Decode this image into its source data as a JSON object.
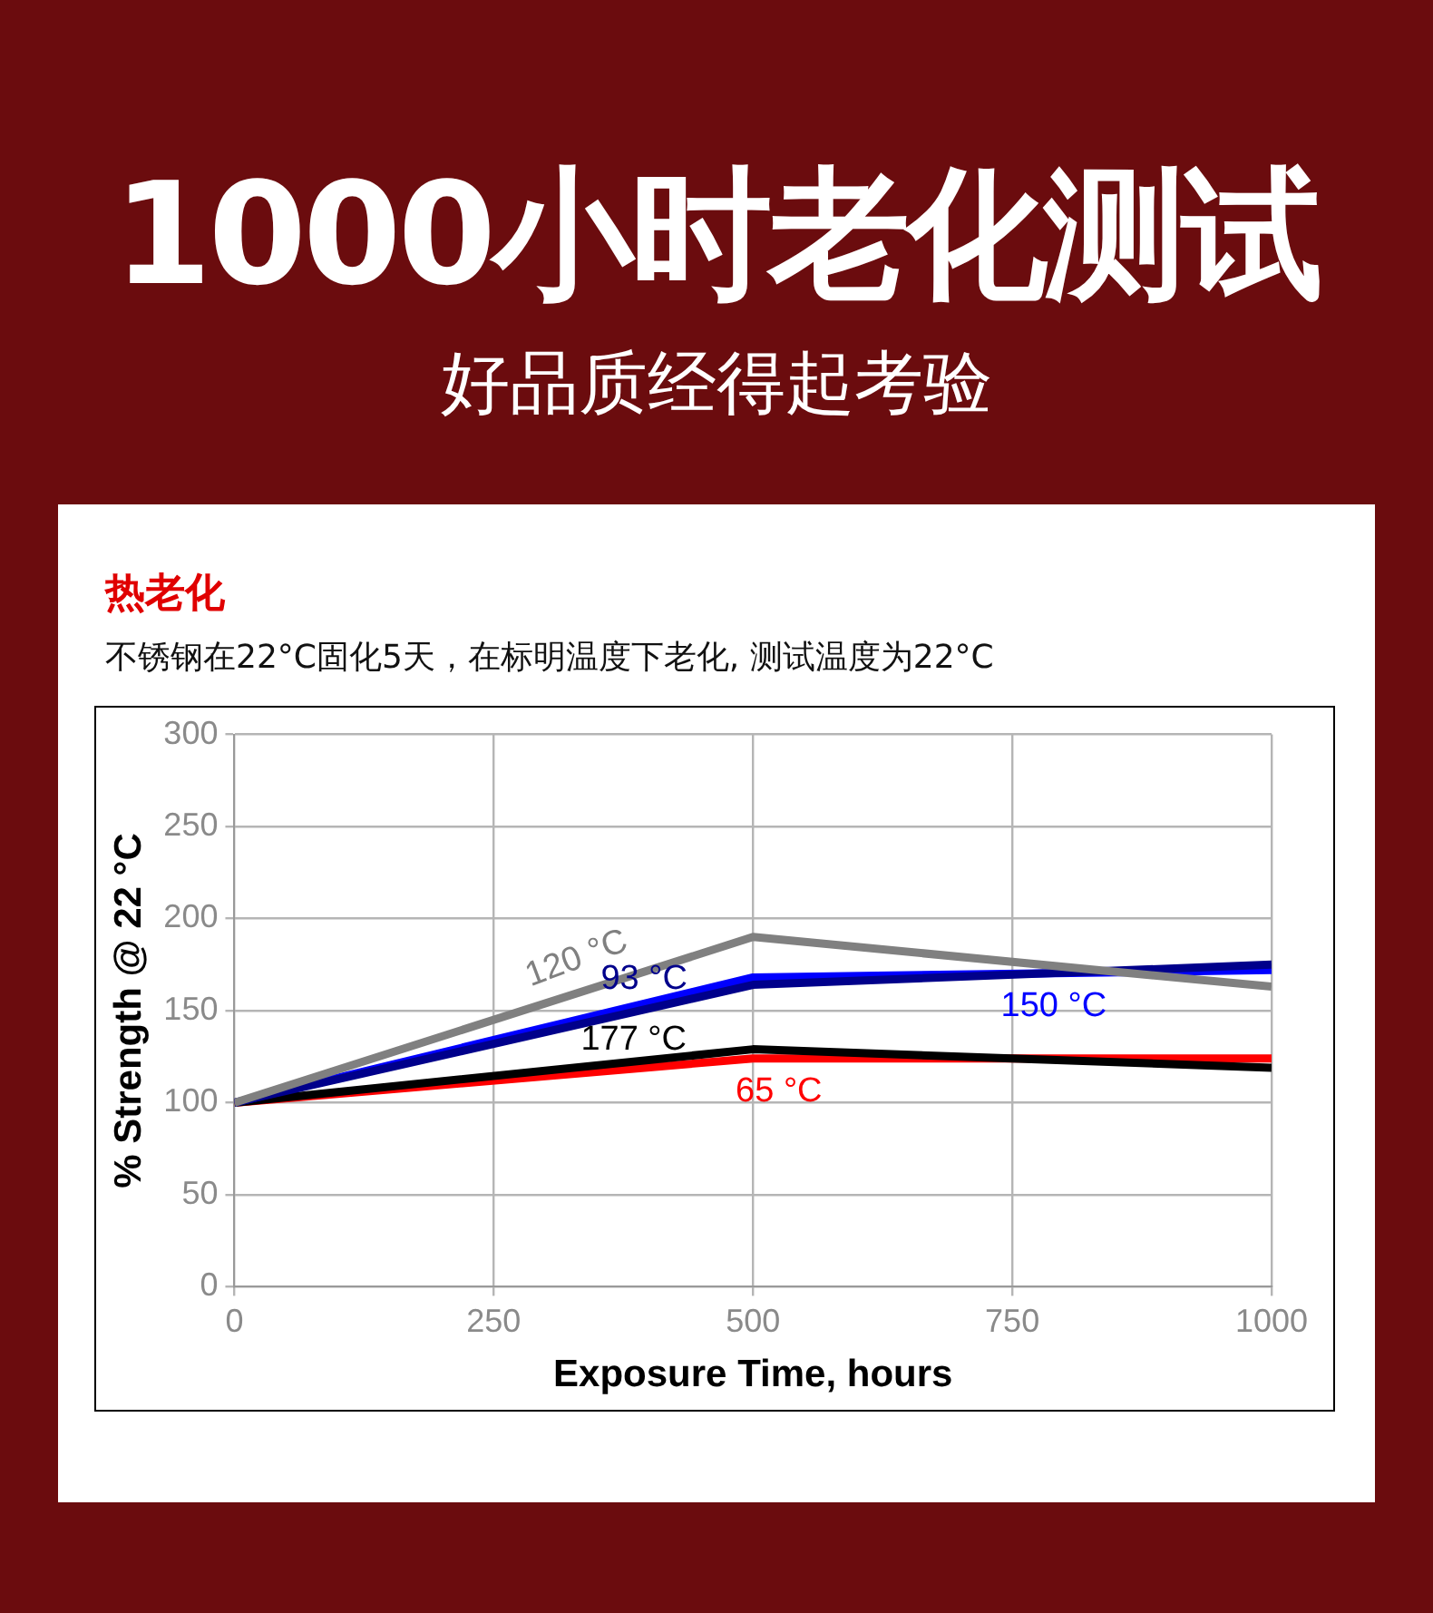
{
  "chart_data": {
    "type": "line",
    "title": "1000小时老化测试",
    "subtitle": "好品质经得起考验",
    "annotations": [
      "热老化",
      "不锈钢在22°C固化5天，在标明温度下老化, 测试温度为22°C"
    ],
    "xlabel": "Exposure Time, hours",
    "ylabel": "% Strength @ 22 °C",
    "x": [
      0,
      500,
      1000
    ],
    "series": [
      {
        "name": "120 °C",
        "color": "#808080",
        "values": [
          100,
          190,
          163
        ]
      },
      {
        "name": "93 °C",
        "color": "#00008b",
        "values": [
          100,
          164,
          175
        ]
      },
      {
        "name": "150 °C",
        "color": "#0000ff",
        "values": [
          100,
          168,
          172
        ]
      },
      {
        "name": "177 °C",
        "color": "#000000",
        "values": [
          100,
          129,
          119
        ]
      },
      {
        "name": "65 °C",
        "color": "#ff0000",
        "values": [
          100,
          124,
          124
        ]
      }
    ],
    "xlim": [
      0,
      1000
    ],
    "xticks": [
      0,
      250,
      500,
      750,
      1000
    ],
    "ylim": [
      0,
      300
    ],
    "yticks": [
      0,
      50,
      100,
      150,
      200,
      250,
      300
    ],
    "grid": true,
    "legend": false,
    "marker": "none",
    "line_style": "solid"
  }
}
